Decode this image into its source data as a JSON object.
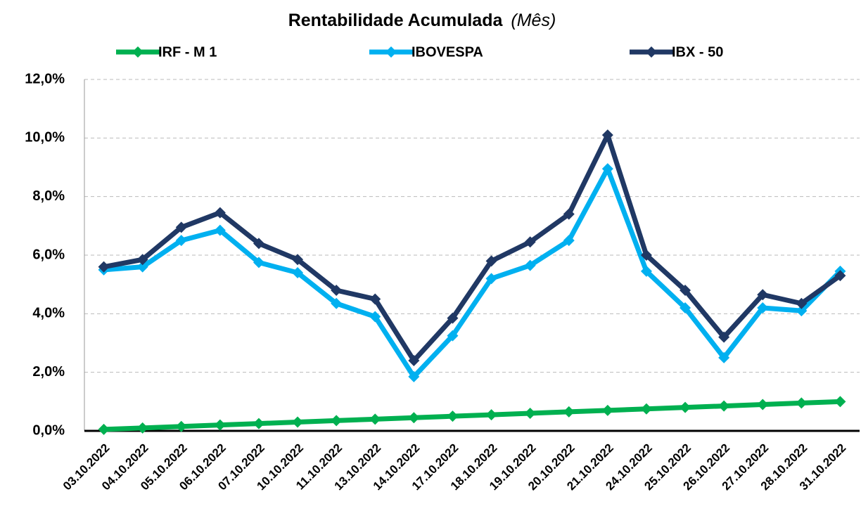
{
  "chart_data": {
    "type": "line",
    "title": "Rentabilidade Acumulada",
    "subtitle": "(Mês)",
    "categories": [
      "03.10.2022",
      "04.10.2022",
      "05.10.2022",
      "06.10.2022",
      "07.10.2022",
      "10.10.2022",
      "11.10.2022",
      "13.10.2022",
      "14.10.2022",
      "17.10.2022",
      "18.10.2022",
      "19.10.2022",
      "20.10.2022",
      "21.10.2022",
      "24.10.2022",
      "25.10.2022",
      "26.10.2022",
      "27.10.2022",
      "28.10.2022",
      "31.10.2022"
    ],
    "series": [
      {
        "name": "IRF - M 1",
        "color": "#00b050",
        "values": [
          0.05,
          0.1,
          0.15,
          0.2,
          0.25,
          0.3,
          0.35,
          0.4,
          0.45,
          0.5,
          0.55,
          0.6,
          0.65,
          0.7,
          0.75,
          0.8,
          0.85,
          0.9,
          0.95,
          1.0
        ]
      },
      {
        "name": "IBOVESPA",
        "color": "#00b0f0",
        "values": [
          5.5,
          5.6,
          6.5,
          6.85,
          5.75,
          5.4,
          4.35,
          3.9,
          1.85,
          3.25,
          5.2,
          5.65,
          6.5,
          8.95,
          5.45,
          4.2,
          2.5,
          4.2,
          4.1,
          5.45
        ]
      },
      {
        "name": "IBX - 50",
        "color": "#203864",
        "values": [
          5.6,
          5.85,
          6.95,
          7.45,
          6.4,
          5.85,
          4.8,
          4.5,
          2.4,
          3.85,
          5.8,
          6.45,
          7.4,
          10.1,
          6.0,
          4.8,
          3.2,
          4.65,
          4.35,
          5.3
        ]
      }
    ],
    "ylim": [
      0,
      12
    ],
    "yticks": [
      {
        "value": 0,
        "label": "0,0%"
      },
      {
        "value": 2,
        "label": "2,0%"
      },
      {
        "value": 4,
        "label": "4,0%"
      },
      {
        "value": 6,
        "label": "6,0%"
      },
      {
        "value": 8,
        "label": "8,0%"
      },
      {
        "value": 10,
        "label": "10,0%"
      },
      {
        "value": 12,
        "label": "12,0%"
      }
    ],
    "grid": true,
    "legend": "top"
  }
}
